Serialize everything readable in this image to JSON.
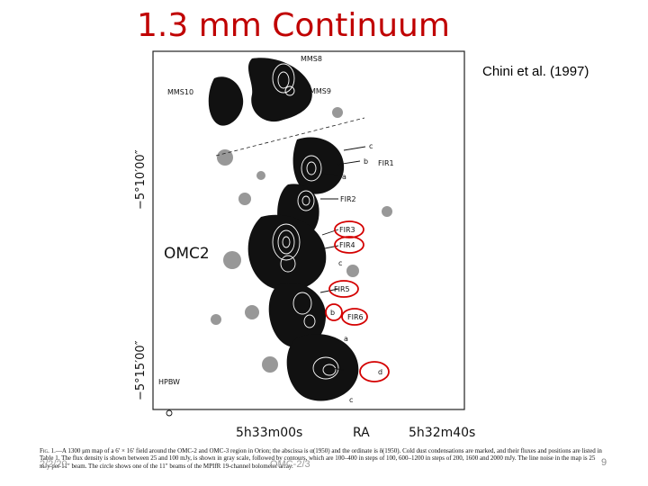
{
  "slide": {
    "title": "1.3 mm Continuum",
    "citation": "Chini et al. (1997)",
    "footer_date": "2/2/20",
    "footer_center": "OMC-2/3",
    "page_number": "9"
  },
  "figure": {
    "axis_labels": {
      "dec": [
        "−5°10′00″",
        "−5°15′00″"
      ],
      "ra": [
        "5h33m00s",
        "RA",
        "5h32m40s"
      ]
    },
    "region_labels": [
      "MMS8",
      "MMS10",
      "MMS9",
      "OMC2",
      "HPBW"
    ],
    "source_labels": [
      "FIR1",
      "FIR2",
      "FIR3",
      "FIR4",
      "FIR5",
      "FIR6"
    ],
    "small_labels": [
      "c",
      "b",
      "a",
      "c",
      "b",
      "a",
      "d",
      "c"
    ],
    "circled_labels": [
      "FIR3",
      "FIR4",
      "FIR5",
      "b",
      "FIR6",
      "d"
    ],
    "highlight_color": "#d40000"
  },
  "caption": {
    "fig_label": "Fig. 1.",
    "text": "—A 1300 μm map of a 6′ × 16′ field around the OMC-2 and OMC-3 region in Orion; the abscissa is α(1950) and the ordinate is δ(1950). Cold dust condensations are marked, and their fluxes and positions are listed in Table 1. The flux density is shown between 25 and 100 mJy, is shown in gray scale, followed by contours, which are 100–400 in steps of 100, 600–1200 in steps of 200, 1600 and 2000 mJy. The line noise in the map is 25 mJy per 11″ beam. The circle shows one of the 11″ beams of the MPIfR 19-channel bolometer array."
  }
}
